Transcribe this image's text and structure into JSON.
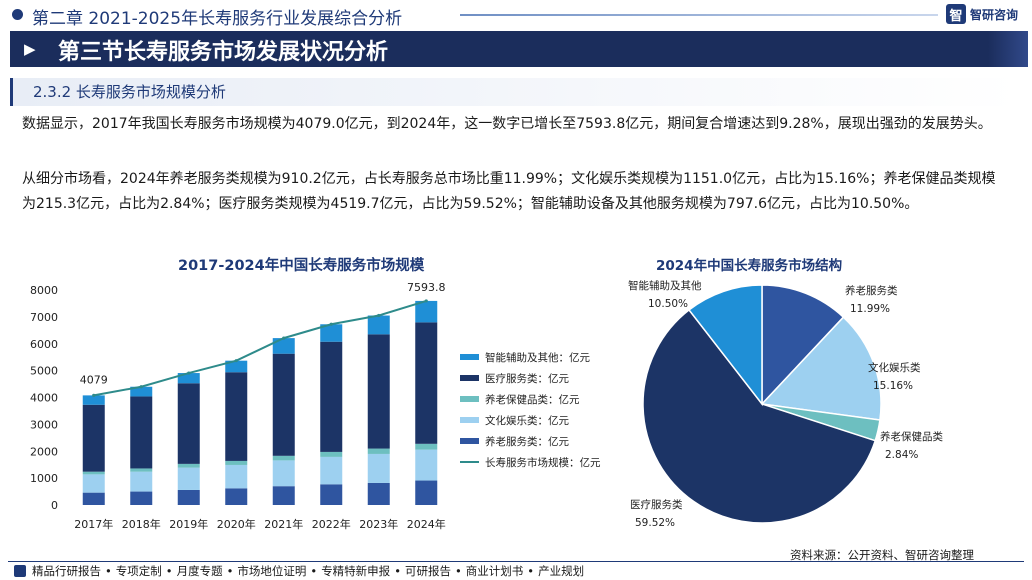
{
  "header": {
    "chapter_title": "第二章 2021-2025年长寿服务行业发展综合分析",
    "brand_logo": "智",
    "brand_name": "智研咨询"
  },
  "banner": {
    "title": "第三节长寿服务市场发展状况分析"
  },
  "section": {
    "title": "2.3.2 长寿服务市场规模分析"
  },
  "paragraphs": {
    "p1": "数据显示，2017年我国长寿服务市场规模为4079.0亿元，到2024年，这一数字已增长至7593.8亿元，期间复合增速达到9.28%，展现出强劲的发展势头。",
    "p2": "从细分市场看，2024年养老服务类规模为910.2亿元，占长寿服务总市场比重11.99%；文化娱乐类规模为1151.0亿元，占比为15.16%；养老保健品类规模为215.3亿元，占比为2.84%；医疗服务类规模为4519.7亿元，占比为59.52%；智能辅助设备及其他服务规模为797.6亿元，占比为10.50%。"
  },
  "colors": {
    "navy": "#1b2d5c",
    "elderly": "#2f55a0",
    "culture": "#9dd0f0",
    "health": "#6dbfc0",
    "medical": "#1c3466",
    "smart": "#1f8fd6",
    "line": "#2e8b8b"
  },
  "chart_data": [
    {
      "type": "bar",
      "stacked": true,
      "title": "2017-2024年中国长寿服务市场规模",
      "categories": [
        "2017年",
        "2018年",
        "2019年",
        "2020年",
        "2021年",
        "2022年",
        "2023年",
        "2024年"
      ],
      "ylim": [
        0,
        8000
      ],
      "yticks": [
        0,
        1000,
        2000,
        3000,
        4000,
        5000,
        6000,
        7000,
        8000
      ],
      "grid": false,
      "legend_position": "right",
      "series": [
        {
          "name": "养老服务类：亿元",
          "color_key": "elderly",
          "values": [
            460,
            500,
            560,
            620,
            700,
            770,
            820,
            910.2
          ]
        },
        {
          "name": "文化娱乐类：亿元",
          "color_key": "culture",
          "values": [
            680,
            740,
            830,
            870,
            960,
            1020,
            1080,
            1151.0
          ]
        },
        {
          "name": "养老保健品类：亿元",
          "color_key": "health",
          "values": [
            100,
            120,
            140,
            150,
            170,
            185,
            200,
            215.3
          ]
        },
        {
          "name": "医疗服务类：亿元",
          "color_key": "medical",
          "values": [
            2490,
            2680,
            3000,
            3300,
            3800,
            4100,
            4250,
            4519.7
          ]
        },
        {
          "name": "智能辅助及其他：亿元",
          "color_key": "smart",
          "values": [
            349,
            360,
            380,
            430,
            580,
            650,
            700,
            797.6
          ]
        }
      ],
      "line_series": {
        "name": "长寿服务市场规模：亿元",
        "color_key": "line",
        "values": [
          4079,
          4400,
          4910,
          5370,
          6210,
          6725,
          7050,
          7593.8
        ]
      },
      "annotations": [
        "4079",
        "7593.8"
      ]
    },
    {
      "type": "pie",
      "title": "2024年中国长寿服务市场结构",
      "slices": [
        {
          "name": "养老服务类",
          "label": "11.99%",
          "value": 11.99,
          "color_key": "elderly"
        },
        {
          "name": "文化娱乐类",
          "label": "15.16%",
          "value": 15.16,
          "color_key": "culture"
        },
        {
          "name": "养老保健品类",
          "label": "2.84%",
          "value": 2.84,
          "color_key": "health"
        },
        {
          "name": "医疗服务类",
          "label": "59.52%",
          "value": 59.52,
          "color_key": "medical"
        },
        {
          "name": "智能辅助及其他",
          "label": "10.50%",
          "value": 10.5,
          "color_key": "smart"
        }
      ]
    }
  ],
  "footer": {
    "items": [
      "精品行研报告",
      "专项定制",
      "月度专题",
      "市场地位证明",
      "专精特新申报",
      "可研报告",
      "商业计划书",
      "产业规划"
    ],
    "source": "资料来源：公开资料、智研咨询整理"
  }
}
